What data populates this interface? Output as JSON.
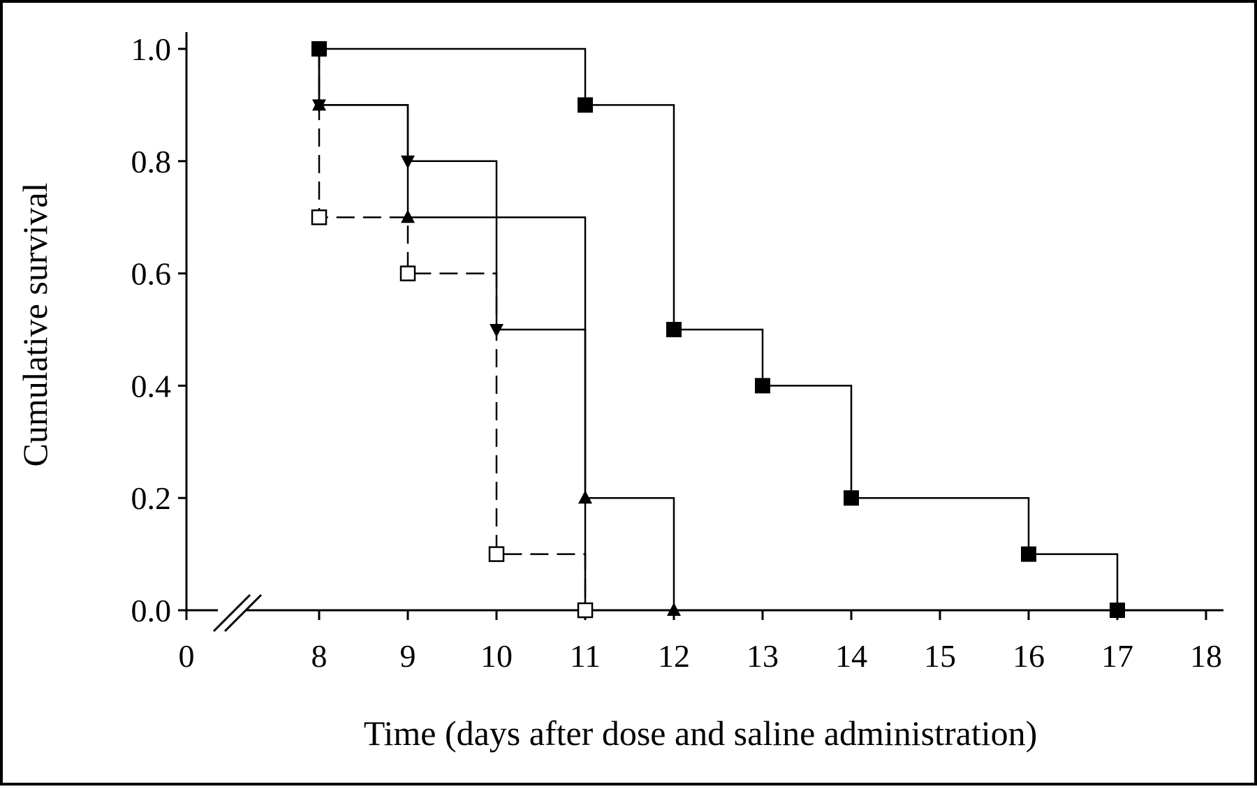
{
  "chart_data": {
    "type": "line",
    "title": "",
    "xlabel": "Time (days after dose and saline administration)",
    "ylabel": "Cumulative survival",
    "xlim": [
      0,
      18
    ],
    "ylim": [
      0,
      1
    ],
    "x_ticks": [
      0,
      8,
      9,
      10,
      11,
      12,
      13,
      14,
      15,
      16,
      17,
      18
    ],
    "x_tick_labels": [
      "0",
      "8",
      "9",
      "10",
      "11",
      "12",
      "13",
      "14",
      "15",
      "16",
      "17",
      "18"
    ],
    "y_ticks": [
      0,
      0.2,
      0.4,
      0.6,
      0.8,
      1.0
    ],
    "y_tick_labels": [
      "0.0",
      "0.2",
      "0.4",
      "0.6",
      "0.8",
      "1.0"
    ],
    "x_axis_break": true,
    "grid": false,
    "legend": "none",
    "series": [
      {
        "marker": "filled-square",
        "line": "solid",
        "x": [
          8,
          11,
          12,
          13,
          14,
          16,
          17
        ],
        "y": [
          1.0,
          0.9,
          0.5,
          0.4,
          0.2,
          0.1,
          0.0
        ]
      },
      {
        "marker": "filled-triangle-down",
        "line": "solid",
        "x": [
          8,
          9,
          10,
          11
        ],
        "y": [
          0.9,
          0.8,
          0.5,
          0.0
        ]
      },
      {
        "marker": "filled-triangle-up",
        "line": "solid",
        "x": [
          8,
          9,
          11,
          12
        ],
        "y": [
          0.9,
          0.7,
          0.2,
          0.0
        ]
      },
      {
        "marker": "open-square",
        "line": "dashed",
        "x": [
          8,
          9,
          10,
          11
        ],
        "y": [
          0.7,
          0.6,
          0.1,
          0.0
        ]
      }
    ]
  }
}
